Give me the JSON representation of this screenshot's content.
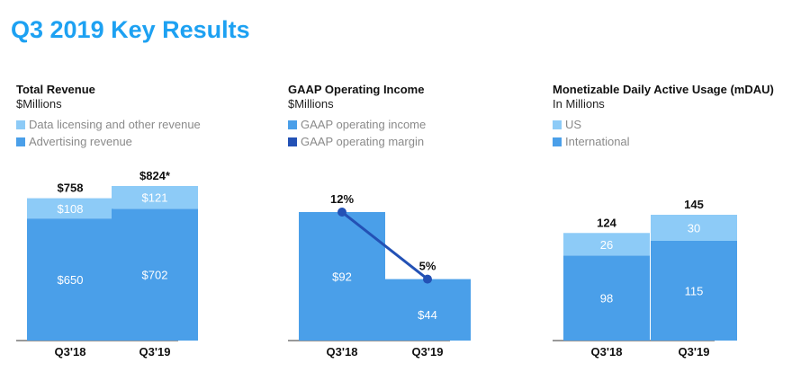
{
  "page": {
    "title": "Q3 2019 Key Results"
  },
  "colors": {
    "light": "#8dcbf7",
    "mid": "#4a9fe9",
    "dark": "#2351b5"
  },
  "panels": [
    {
      "title": "Total Revenue",
      "subtitle": "$Millions",
      "legend": [
        "Data licensing and other revenue",
        "Advertising revenue"
      ]
    },
    {
      "title": "GAAP Operating Income",
      "subtitle": "$Millions",
      "legend": [
        "GAAP operating income",
        "GAAP operating margin"
      ]
    },
    {
      "title": "Monetizable Daily Active Usage (mDAU)",
      "subtitle": "In Millions",
      "legend": [
        "US",
        "International"
      ]
    }
  ],
  "chart_data": [
    {
      "type": "bar",
      "stacked": true,
      "title": "Total Revenue",
      "ylabel": "$Millions",
      "categories": [
        "Q3'18",
        "Q3'19"
      ],
      "series": [
        {
          "name": "Advertising revenue",
          "values": [
            650,
            702
          ],
          "labels": [
            "$650",
            "$702"
          ]
        },
        {
          "name": "Data licensing and other revenue",
          "values": [
            108,
            121
          ],
          "labels": [
            "$108",
            "$121"
          ]
        }
      ],
      "totals": [
        "$758",
        "$824*"
      ],
      "ylim": [
        0,
        824
      ]
    },
    {
      "type": "bar",
      "title": "GAAP Operating Income",
      "ylabel": "$Millions",
      "categories": [
        "Q3'18",
        "Q3'19"
      ],
      "series": [
        {
          "name": "GAAP operating income",
          "values": [
            92,
            44
          ],
          "labels": [
            "$92",
            "$44"
          ]
        },
        {
          "name": "GAAP operating margin",
          "type": "line",
          "values": [
            12,
            5
          ],
          "labels": [
            "12%",
            "5%"
          ]
        }
      ]
    },
    {
      "type": "bar",
      "stacked": true,
      "title": "Monetizable Daily Active Usage (mDAU)",
      "ylabel": "In Millions",
      "categories": [
        "Q3'18",
        "Q3'19"
      ],
      "series": [
        {
          "name": "International",
          "values": [
            98,
            115
          ],
          "labels": [
            "98",
            "115"
          ]
        },
        {
          "name": "US",
          "values": [
            26,
            30
          ],
          "labels": [
            "26",
            "30"
          ]
        }
      ],
      "totals": [
        "124",
        "145"
      ],
      "ylim": [
        0,
        145
      ]
    }
  ]
}
